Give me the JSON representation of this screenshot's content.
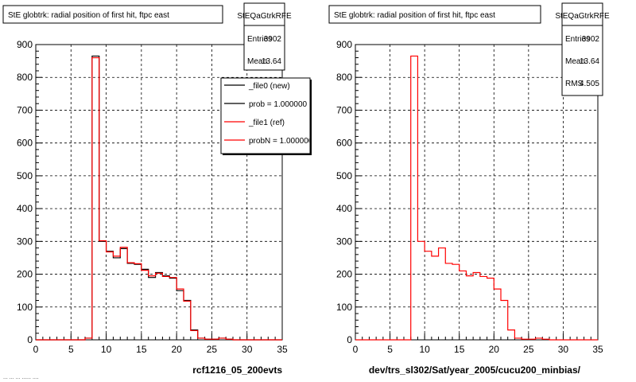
{
  "footer_stamp": "...  ...  ...  ......  ....",
  "chart_data": [
    {
      "type": "bar",
      "title": "StE globtrk: radial position of first hit, ftpc east",
      "xlabel": "rcf1216_05_200evts",
      "ylabel": "",
      "xlim": [
        0,
        35
      ],
      "ylim": [
        0,
        900
      ],
      "xticks": [
        "0",
        "5",
        "10",
        "15",
        "20",
        "25",
        "30",
        "35"
      ],
      "yticks": [
        "0",
        "100",
        "200",
        "300",
        "400",
        "500",
        "600",
        "700",
        "800",
        "900"
      ],
      "grid": true,
      "bin_edges": [
        0,
        1,
        2,
        3,
        4,
        5,
        6,
        7,
        8,
        9,
        10,
        11,
        12,
        13,
        14,
        15,
        16,
        17,
        18,
        19,
        20,
        21,
        22,
        23,
        24,
        25,
        26,
        27,
        28,
        29,
        30,
        31,
        32,
        33,
        34,
        35
      ],
      "series": [
        {
          "name": "_file0 (new)",
          "color": "#000000",
          "values": [
            0,
            0,
            0,
            0,
            0,
            0,
            0,
            5,
            865,
            300,
            270,
            250,
            278,
            233,
            230,
            215,
            190,
            205,
            195,
            188,
            150,
            120,
            30,
            5,
            2,
            2,
            5,
            2,
            0,
            0,
            0,
            0,
            0,
            0,
            0
          ]
        },
        {
          "name": "_file1 (ref)",
          "color": "#ff0000",
          "values": [
            0,
            0,
            0,
            0,
            0,
            0,
            0,
            5,
            860,
            302,
            268,
            255,
            282,
            235,
            232,
            212,
            195,
            203,
            193,
            190,
            155,
            118,
            28,
            5,
            2,
            2,
            5,
            2,
            0,
            0,
            0,
            0,
            0,
            0,
            0
          ]
        }
      ],
      "stats_box": {
        "name": "StEQaGtrkRFE",
        "entries_label": "Entries",
        "entries": "3902",
        "mean_label": "Mean",
        "mean": "13.64"
      },
      "legend": {
        "position": "top-right",
        "entries": [
          {
            "label": "_file0 (new)",
            "color": "#000000"
          },
          {
            "label": "prob = 1.000000",
            "color": "#000000"
          },
          {
            "label": "_file1 (ref)",
            "color": "#ff0000"
          },
          {
            "label": "probN = 1.000000",
            "color": "#ff0000"
          }
        ]
      }
    },
    {
      "type": "bar",
      "title": "StE globtrk: radial position of first hit, ftpc east",
      "xlabel": "dev/trs_sl302/Sat/year_2005/cucu200_minbias/",
      "ylabel": "",
      "xlim": [
        0,
        35
      ],
      "ylim": [
        0,
        900
      ],
      "xticks": [
        "0",
        "5",
        "10",
        "15",
        "20",
        "25",
        "30",
        "35"
      ],
      "yticks": [
        "0",
        "100",
        "200",
        "300",
        "400",
        "500",
        "600",
        "700",
        "800",
        "900"
      ],
      "grid": true,
      "bin_edges": [
        0,
        1,
        2,
        3,
        4,
        5,
        6,
        7,
        8,
        9,
        10,
        11,
        12,
        13,
        14,
        15,
        16,
        17,
        18,
        19,
        20,
        21,
        22,
        23,
        24,
        25,
        26,
        27,
        28,
        29,
        30,
        31,
        32,
        33,
        34,
        35
      ],
      "series": [
        {
          "name": "",
          "color": "#ff0000",
          "values": [
            0,
            0,
            0,
            0,
            0,
            0,
            0,
            0,
            865,
            300,
            270,
            255,
            280,
            233,
            230,
            210,
            195,
            205,
            193,
            188,
            155,
            120,
            30,
            5,
            2,
            2,
            5,
            2,
            0,
            0,
            0,
            0,
            0,
            0,
            0
          ]
        }
      ],
      "stats_box": {
        "name": "StEQaGtrkRFE",
        "entries_label": "Entries",
        "entries": "3902",
        "mean_label": "Mean",
        "mean": "13.64",
        "rms_label": "RMS",
        "rms": "4.505"
      }
    }
  ]
}
